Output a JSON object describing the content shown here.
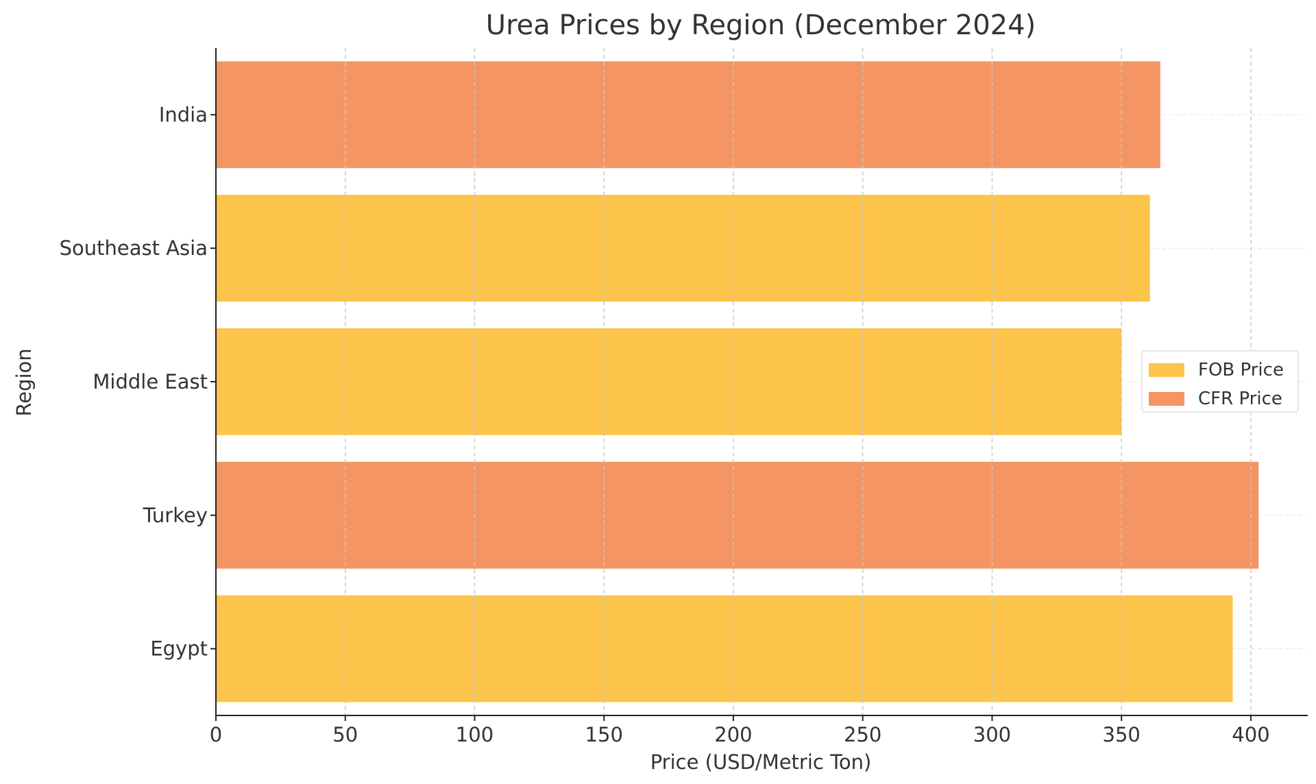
{
  "chart_data": {
    "type": "bar",
    "orientation": "horizontal",
    "title": "Urea Prices by Region (December 2024)",
    "xlabel": "Price (USD/Metric Ton)",
    "ylabel": "Region",
    "xlim": [
      0,
      422
    ],
    "xticks": [
      0,
      50,
      100,
      150,
      200,
      250,
      300,
      350,
      400
    ],
    "grid": true,
    "legend_position": "center-right",
    "categories": [
      "India",
      "Southeast Asia",
      "Middle East",
      "Turkey",
      "Egypt"
    ],
    "bars": [
      {
        "category": "India",
        "value": 365,
        "series": "CFR Price"
      },
      {
        "category": "Southeast Asia",
        "value": 361,
        "series": "FOB Price"
      },
      {
        "category": "Middle East",
        "value": 350,
        "series": "FOB Price"
      },
      {
        "category": "Turkey",
        "value": 403,
        "series": "CFR Price"
      },
      {
        "category": "Egypt",
        "value": 393,
        "series": "FOB Price"
      }
    ],
    "series": [
      {
        "name": "FOB Price",
        "color": "#fdc54c"
      },
      {
        "name": "CFR Price",
        "color": "#f49563"
      }
    ]
  }
}
